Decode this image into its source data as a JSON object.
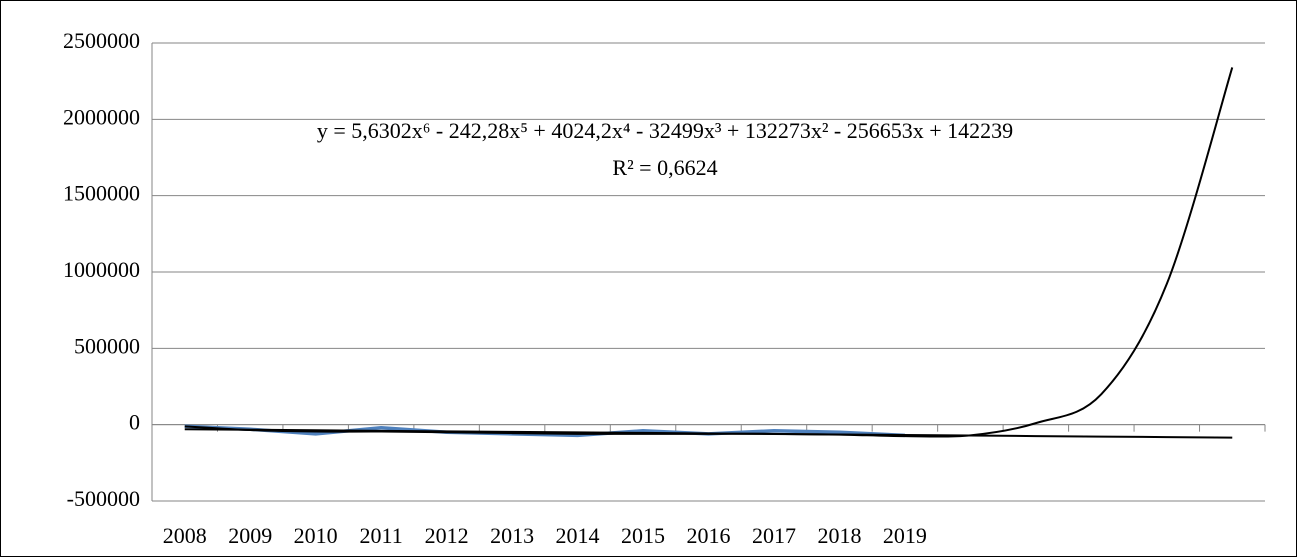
{
  "chart_data": {
    "type": "line",
    "categories": [
      "2008",
      "2009",
      "2010",
      "2011",
      "2012",
      "2013",
      "2014",
      "2015",
      "2016",
      "2017",
      "2018",
      "2019",
      null,
      null,
      null,
      null,
      null
    ],
    "series": [
      {
        "color": "#4f81bd",
        "width": 3.5,
        "values": [
          -10000,
          -30000,
          -60000,
          -20000,
          -50000,
          -60000,
          -70000,
          -40000,
          -60000,
          -40000,
          -50000,
          -70000,
          null,
          null,
          null,
          null,
          null
        ]
      },
      {
        "color": "#000000",
        "width": 2,
        "values": [
          -10852,
          -35000,
          -45000,
          -45000,
          -50000,
          -55000,
          -60000,
          -60000,
          -60000,
          -60000,
          -65000,
          -75000,
          -70000,
          10000,
          200000,
          921832,
          2340043
        ],
        "smooth": true
      },
      {
        "color": "#000000",
        "width": 2,
        "values": [
          -30000,
          -33438,
          -36875,
          -40313,
          -43750,
          -47188,
          -50625,
          -54063,
          -57500,
          -60938,
          -64375,
          -67813,
          -71250,
          -74688,
          -78125,
          -81563,
          -85000
        ]
      }
    ],
    "annotations": [
      "y = 5,6302x⁶ - 242,28x⁵ + 4024,2x⁴ - 32499x³ + 132273x² - 256653x + 142239",
      "R² = 0,6624"
    ],
    "ylim": [
      -500000,
      2500000
    ],
    "yticks": [
      -500000,
      0,
      500000,
      1000000,
      1500000,
      2000000,
      2500000
    ],
    "grid": true
  }
}
